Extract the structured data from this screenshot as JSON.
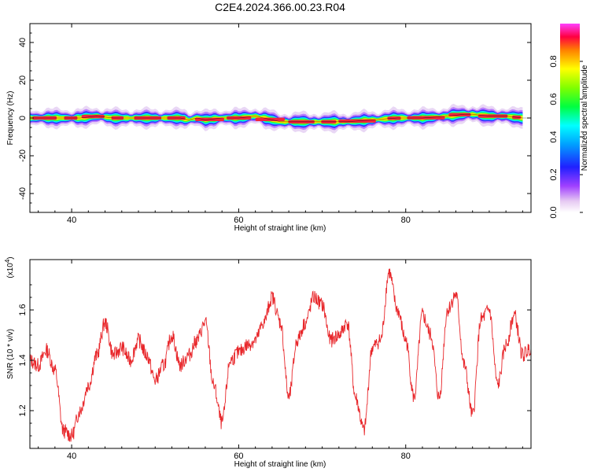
{
  "title": "C2E4.2024.366.00.23.R04",
  "chart_data": [
    {
      "type": "heatmap",
      "xlabel": "Height of straight line (km)",
      "ylabel": "Frequency (Hz)",
      "xlim": [
        35,
        95
      ],
      "ylim": [
        -50,
        50
      ],
      "xticks": [
        40,
        60,
        80
      ],
      "yticks": [
        40,
        20,
        0,
        -20,
        -40
      ],
      "colorbar": {
        "label": "Normalized spectral amplitude",
        "range": [
          0,
          1
        ],
        "ticks": [
          "0.0",
          "0.2",
          "0.4",
          "0.6",
          "0.8"
        ]
      },
      "ridge": {
        "x": [
          35,
          38,
          41,
          43,
          45,
          50,
          53,
          54,
          55,
          56,
          58,
          60,
          62,
          63,
          65,
          67,
          70,
          73,
          76,
          79,
          82,
          85,
          87,
          88,
          90,
          92,
          94
        ],
        "y": [
          0,
          0,
          0,
          1,
          0,
          0,
          0,
          -1,
          0,
          -1,
          0,
          0,
          1,
          0,
          -2,
          -2,
          -2,
          -2,
          -1,
          0,
          0,
          1,
          2,
          2,
          1,
          1,
          0
        ]
      }
    },
    {
      "type": "line",
      "xlabel": "Height of straight line (km)",
      "ylabel": "SNR (10 * v/v)",
      "ymultiplier": "(x10",
      "ymultiplier_exp": "4",
      "ymultiplier_close": ")",
      "xlim": [
        35,
        95
      ],
      "ylim": [
        1.05,
        1.8
      ],
      "xticks": [
        40,
        60,
        80
      ],
      "yticks": [
        "1.2",
        "1.4",
        "1.6"
      ],
      "color": "#e8262a",
      "series": [
        {
          "x": [
            35,
            36,
            37,
            38,
            39,
            40,
            41,
            42,
            43,
            44,
            45,
            46,
            47,
            48,
            49,
            50,
            51,
            52,
            53,
            54,
            55,
            56,
            57,
            58,
            59,
            60,
            61,
            62,
            63,
            64,
            65,
            66,
            67,
            68,
            69,
            70,
            71,
            72,
            73,
            74,
            75,
            76,
            77,
            78,
            79,
            80,
            81,
            82,
            83,
            84,
            85,
            86,
            87,
            88,
            89,
            90,
            91,
            92,
            93,
            94,
            95
          ],
          "y": [
            1.4,
            1.38,
            1.44,
            1.36,
            1.12,
            1.1,
            1.2,
            1.3,
            1.42,
            1.55,
            1.42,
            1.45,
            1.4,
            1.48,
            1.42,
            1.32,
            1.38,
            1.5,
            1.38,
            1.42,
            1.48,
            1.55,
            1.3,
            1.15,
            1.4,
            1.43,
            1.46,
            1.48,
            1.55,
            1.65,
            1.55,
            1.25,
            1.48,
            1.55,
            1.65,
            1.62,
            1.48,
            1.5,
            1.55,
            1.25,
            1.12,
            1.45,
            1.48,
            1.75,
            1.6,
            1.48,
            1.25,
            1.58,
            1.5,
            1.25,
            1.6,
            1.66,
            1.38,
            1.18,
            1.56,
            1.6,
            1.3,
            1.46,
            1.58,
            1.42,
            1.45
          ]
        }
      ]
    }
  ]
}
